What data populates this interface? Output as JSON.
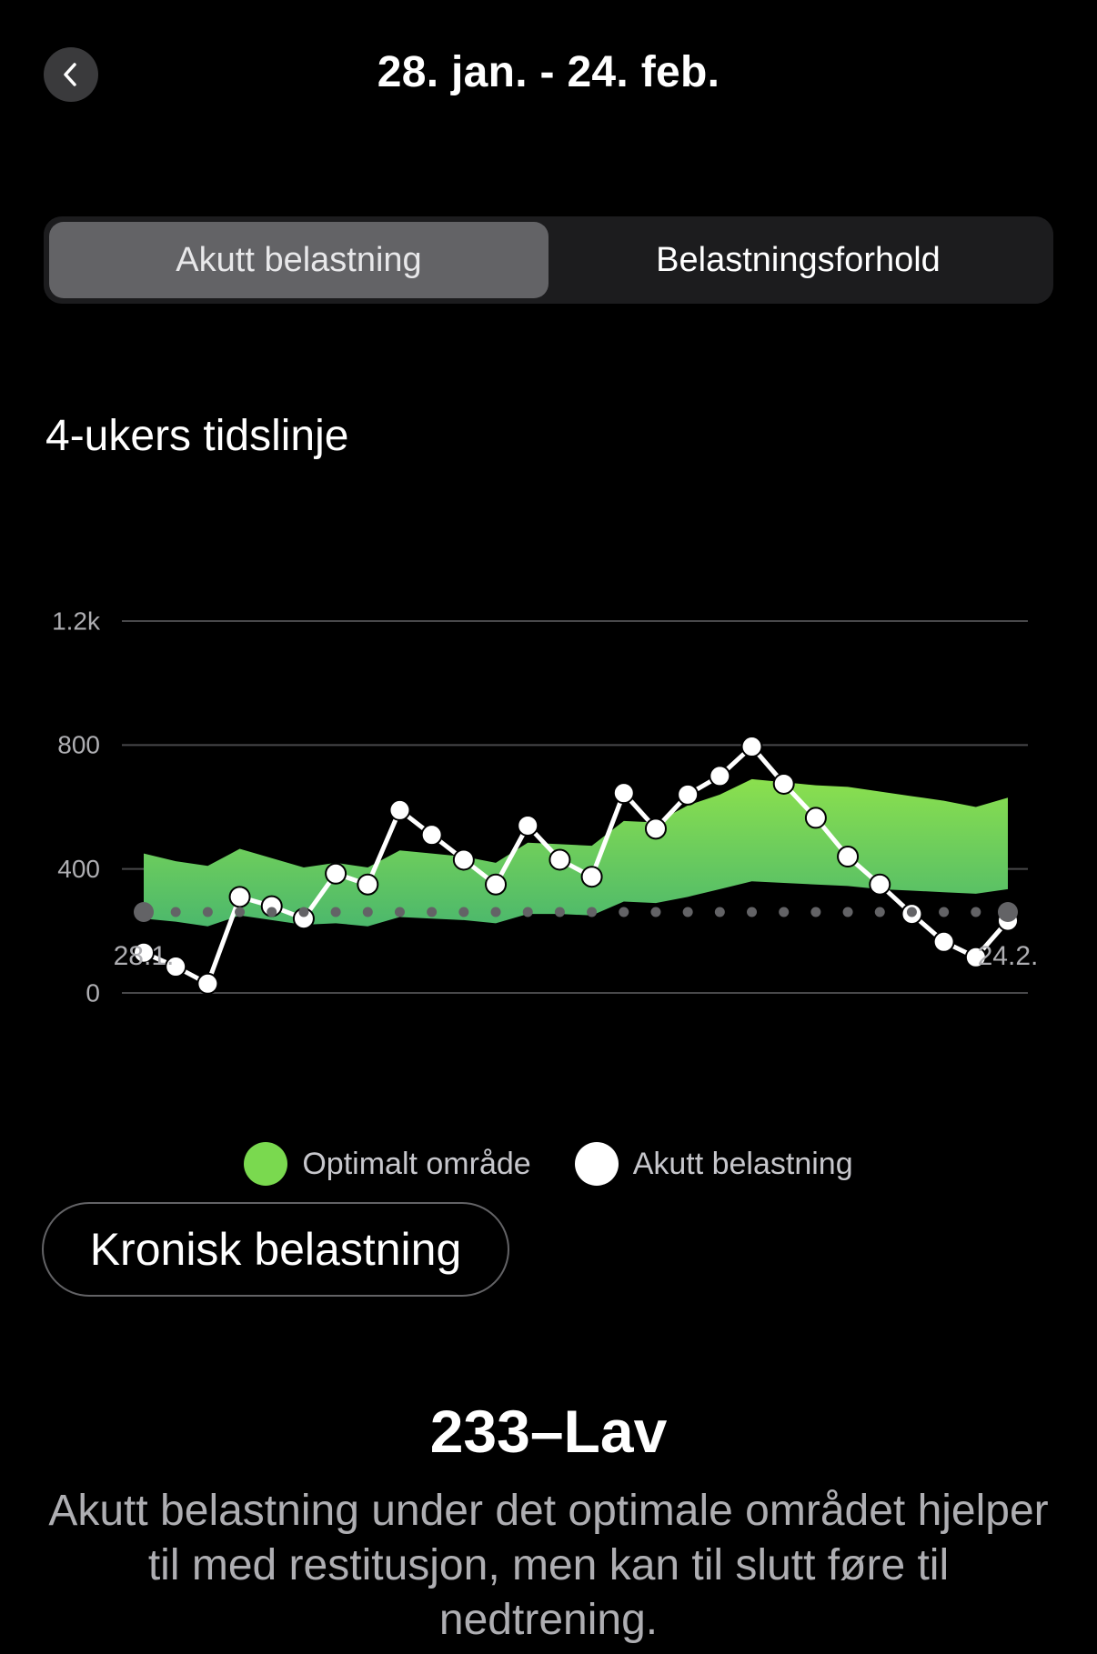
{
  "header": {
    "title": "28. jan. - 24. feb.",
    "back_icon": "chevron-left-icon"
  },
  "tabs": [
    {
      "label": "Akutt belastning",
      "active": true
    },
    {
      "label": "Belastningsforhold",
      "active": false
    }
  ],
  "section": {
    "title": "4-ukers tidslinje"
  },
  "chart_data": {
    "type": "line",
    "yticks": [
      "1.2k",
      "800",
      "400",
      "0"
    ],
    "ytick_values": [
      1200,
      800,
      400,
      0
    ],
    "ylim": [
      0,
      1200
    ],
    "x_start_label": "28.1.",
    "x_end_label": "24.2.",
    "days": 28,
    "grid": true,
    "colors": {
      "optimal_top": "#8be04e",
      "optimal_bottom": "#4cb86c",
      "acute": "#ffffff",
      "grid": "#48484a",
      "axis_text": "#aeaeb2",
      "day_dot": "#636366"
    },
    "series": [
      {
        "name": "Optimalt område",
        "kind": "band",
        "upper": [
          450,
          425,
          410,
          465,
          435,
          405,
          420,
          405,
          460,
          450,
          440,
          420,
          485,
          480,
          475,
          555,
          550,
          605,
          640,
          690,
          680,
          670,
          665,
          650,
          635,
          620,
          600,
          630
        ],
        "lower": [
          240,
          230,
          215,
          250,
          235,
          220,
          225,
          215,
          245,
          240,
          235,
          225,
          255,
          255,
          250,
          295,
          290,
          310,
          335,
          360,
          355,
          350,
          345,
          335,
          330,
          325,
          320,
          335
        ]
      },
      {
        "name": "Akutt belastning",
        "kind": "line",
        "values": [
          130,
          85,
          30,
          310,
          280,
          240,
          385,
          350,
          590,
          510,
          430,
          350,
          540,
          430,
          375,
          645,
          530,
          640,
          700,
          795,
          675,
          565,
          440,
          350,
          255,
          165,
          115,
          233
        ]
      }
    ]
  },
  "legend": {
    "optimal_label": "Optimalt område",
    "acute_label": "Akutt belastning",
    "optimal_color": "#7ad94f",
    "acute_color": "#ffffff"
  },
  "chronic_button": {
    "label": "Kronisk belastning"
  },
  "result": {
    "value": "233–Lav",
    "description": "Akutt belastning under det optimale området hjelper til med restitusjon, men kan til slutt føre til nedtrening."
  }
}
